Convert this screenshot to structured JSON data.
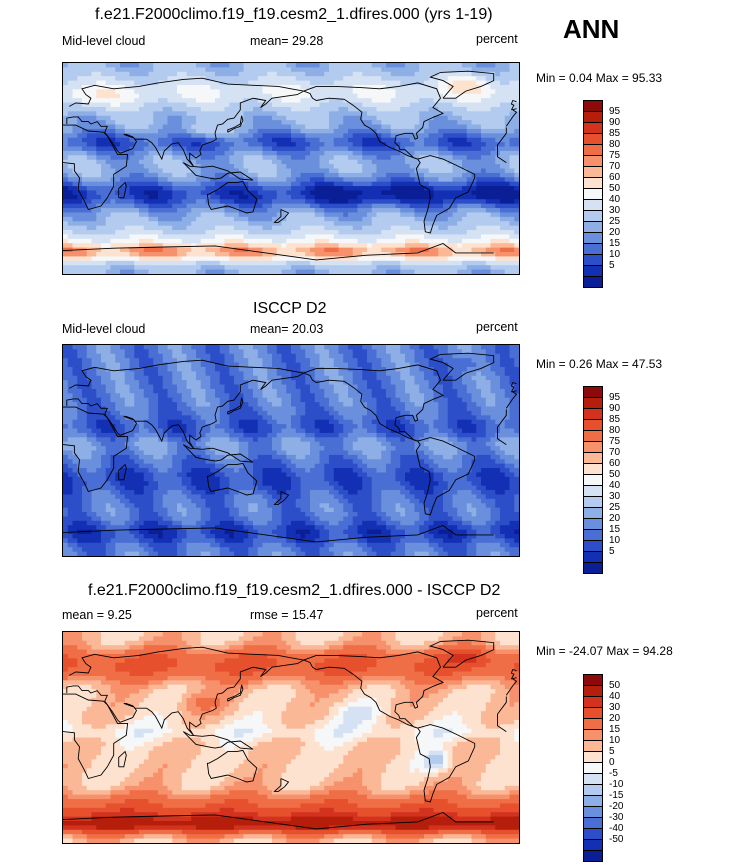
{
  "season": "ANN",
  "panels": [
    {
      "title": "f.e21.F2000climo.f19_f19.cesm2_1.dfires.000 (yrs 1-19)",
      "left_label": "Mid-level cloud",
      "center_label": "mean=  29.28",
      "right_label": "percent",
      "minmax": "Min =   0.04 Max =  95.33",
      "field": "model",
      "colorbar": {
        "labels": [
          "95",
          "90",
          "85",
          "80",
          "75",
          "70",
          "60",
          "50",
          "40",
          "30",
          "25",
          "20",
          "15",
          "10",
          "5"
        ],
        "colors": [
          "#8c0a0a",
          "#b41e0a",
          "#d2321e",
          "#e6502d",
          "#f06e46",
          "#f6916c",
          "#fbb896",
          "#fde2cf",
          "#f6f7f8",
          "#d4e2f4",
          "#b3cbee",
          "#8eaee6",
          "#6a8fdc",
          "#4a6fd4",
          "#2c4ec8",
          "#1330b4",
          "#0a1e96"
        ]
      },
      "legend_scale": "sequential"
    },
    {
      "title": "ISCCP D2",
      "left_label": "Mid-level cloud",
      "center_label": "mean=  20.03",
      "right_label": "percent",
      "minmax": "Min =   0.26 Max =  47.53",
      "field": "obs",
      "colorbar": {
        "labels": [
          "95",
          "90",
          "85",
          "80",
          "75",
          "70",
          "60",
          "50",
          "40",
          "30",
          "25",
          "20",
          "15",
          "10",
          "5"
        ],
        "colors": [
          "#8c0a0a",
          "#b41e0a",
          "#d2321e",
          "#e6502d",
          "#f06e46",
          "#f6916c",
          "#fbb896",
          "#fde2cf",
          "#f6f7f8",
          "#d4e2f4",
          "#b3cbee",
          "#8eaee6",
          "#6a8fdc",
          "#4a6fd4",
          "#2c4ec8",
          "#1330b4",
          "#0a1e96"
        ]
      },
      "legend_scale": "sequential"
    },
    {
      "title": "f.e21.F2000climo.f19_f19.cesm2_1.dfires.000 - ISCCP D2",
      "left_label": "mean =   9.25",
      "center_label": "rmse =  15.47",
      "right_label": "percent",
      "minmax": "Min = -24.07 Max =  94.28",
      "field": "diff",
      "colorbar": {
        "labels": [
          "50",
          "40",
          "30",
          "20",
          "15",
          "10",
          "5",
          "0",
          "-5",
          "-10",
          "-15",
          "-20",
          "-30",
          "-40",
          "-50"
        ],
        "colors": [
          "#8c0a0a",
          "#b41e0a",
          "#d2321e",
          "#e6502d",
          "#f06e46",
          "#f6916c",
          "#fbb896",
          "#fde2cf",
          "#f6f7f8",
          "#d4e2f4",
          "#b3cbee",
          "#8eaee6",
          "#6a8fdc",
          "#4a6fd4",
          "#2c4ec8",
          "#1330b4",
          "#0a1e96"
        ]
      },
      "legend_scale": "diverging"
    }
  ]
}
